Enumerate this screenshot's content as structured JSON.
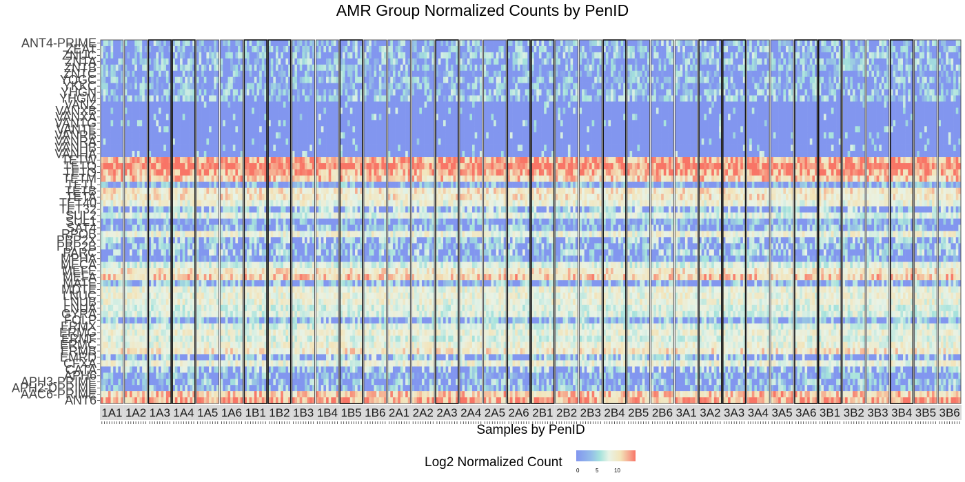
{
  "title": "AMR Group Normalized Counts by PenID",
  "chart_data": {
    "type": "heatmap",
    "title": "AMR Group Normalized Counts by PenID",
    "xlabel": "Samples by PenID",
    "ylabel": "",
    "facets": [
      "1A1",
      "1A2",
      "1A3",
      "1A4",
      "1A5",
      "1A6",
      "1B1",
      "1B2",
      "1B3",
      "1B4",
      "1B5",
      "1B6",
      "2A1",
      "2A2",
      "2A3",
      "2A4",
      "2A5",
      "2A6",
      "2B1",
      "2B2",
      "2B3",
      "2B4",
      "2B5",
      "2B6",
      "3A1",
      "3A2",
      "3A3",
      "3A4",
      "3A5",
      "3A6",
      "3B1",
      "3B2",
      "3B3",
      "3B4",
      "3B5",
      "3B6"
    ],
    "highlighted_facets": [
      "1A3",
      "1A4",
      "1B1",
      "1B2",
      "1B5",
      "2A3",
      "2A6",
      "2B1",
      "2B4",
      "3A2",
      "3A3",
      "3A6",
      "3B1",
      "3B4"
    ],
    "row_labels": [
      "ANT4-PRIME",
      "ZEAT",
      "ZNUC",
      "ZNTA",
      "ZNTB",
      "ZNTC",
      "YOGC",
      "YKKC",
      "YHGN",
      "YHGM",
      "VANZ",
      "VANXB",
      "VANXA",
      "VANTG",
      "VANTE",
      "VANRB",
      "VANRA",
      "VANHB",
      "VANHA",
      "TETW",
      "TETQ",
      "TETO",
      "TETM",
      "TETL",
      "TETB",
      "TETA",
      "TET40",
      "TET32",
      "SUL2",
      "SUL1",
      "SAT4",
      "RPOB",
      "PBP2X",
      "PBP2B",
      "PARC",
      "MPHA",
      "MECA",
      "MEFE",
      "MEFA",
      "MATE",
      "MDTE",
      "LNUC",
      "LNUB",
      "LNUA",
      "GYRA",
      "FOLP",
      "ERMX",
      "ERMG",
      "ERMF",
      "ERMC",
      "ERMB",
      "EMRD",
      "CFXA",
      "CATA",
      "APH6",
      "APH3-PRIME",
      "APH2-DPRIME",
      "AAC6-PRIME",
      "ANT6"
    ],
    "row_summary_log2": [
      3,
      3,
      3,
      3,
      3,
      2,
      3,
      2,
      3,
      3,
      1,
      1,
      1,
      1,
      1,
      1,
      1,
      1,
      1,
      9,
      10,
      9,
      8,
      2,
      7,
      7,
      6,
      4,
      5,
      2,
      3,
      6,
      4,
      3,
      4,
      2,
      5,
      7,
      8,
      3,
      6,
      6,
      6,
      5,
      5,
      3,
      5,
      6,
      5,
      6,
      7,
      4,
      6,
      4,
      2,
      3,
      3,
      8,
      9
    ],
    "colorscale": {
      "name": "Log2 Normalized Count",
      "min": 0,
      "mid": 5,
      "max": 10,
      "low_color": "#8296ef",
      "mid_color": "#e8f3e6",
      "high_color": "#f87566"
    },
    "legend_ticks": [
      "0",
      "5",
      "10"
    ],
    "legend_position": "bottom",
    "grid": false
  }
}
